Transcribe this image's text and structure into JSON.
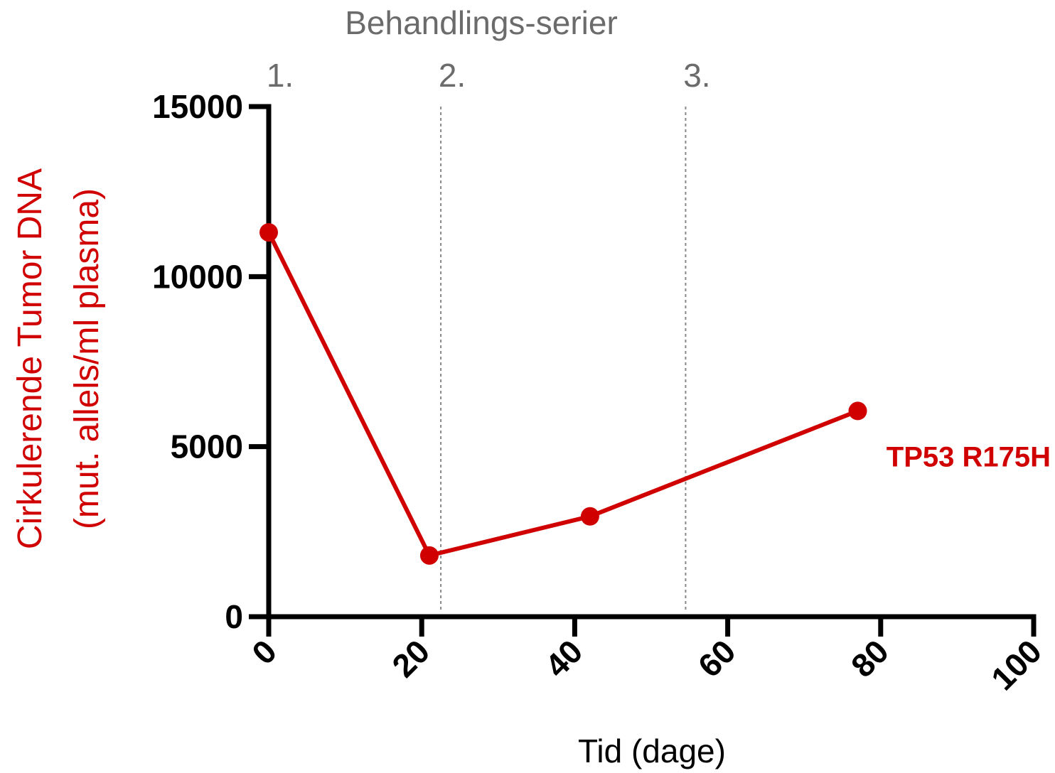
{
  "chart_data": {
    "type": "line",
    "title": "Behandlings-serier",
    "xlabel": "Tid (dage)",
    "ylabel_line1": "Cirkulerende Tumor DNA",
    "ylabel_line2": "(mut. allels/ml plasma)",
    "xlim": [
      0,
      100
    ],
    "ylim": [
      0,
      15000
    ],
    "x_ticks": [
      "0",
      "20",
      "40",
      "60",
      "80",
      "100"
    ],
    "y_ticks": [
      "0",
      "5000",
      "10000",
      "15000"
    ],
    "x_tick_values": [
      0,
      20,
      40,
      60,
      80,
      100
    ],
    "y_tick_values": [
      0,
      5000,
      10000,
      15000
    ],
    "grid": false,
    "series": [
      {
        "name": "TP53 R175H",
        "color": "#d00000",
        "x": [
          0,
          21,
          42,
          77
        ],
        "y": [
          11300,
          1800,
          2950,
          6050
        ]
      }
    ],
    "treatments": [
      {
        "label": "1.",
        "x": 0,
        "line": false
      },
      {
        "label": "2.",
        "x": 22.5,
        "line": true
      },
      {
        "label": "3.",
        "x": 54.5,
        "line": true
      }
    ],
    "colors": {
      "axis": "#000000",
      "series": "#d00000",
      "muted_text": "#6b6b6b",
      "treatment_line": "#8a8a8a"
    }
  }
}
